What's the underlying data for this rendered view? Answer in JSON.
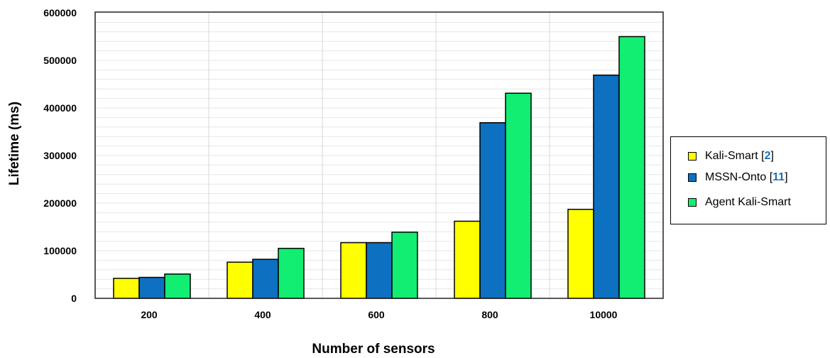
{
  "chart_data": {
    "type": "bar",
    "xlabel": "Number of sensors",
    "ylabel": "Lifetime (ms)",
    "categories": [
      "200",
      "400",
      "600",
      "800",
      "10000"
    ],
    "ylim": [
      0,
      600000
    ],
    "yticks": [
      "0",
      "100000",
      "200000",
      "300000",
      "400000",
      "500000",
      "600000"
    ],
    "grid": true,
    "legend_position": "right",
    "series": [
      {
        "name": "Kali-Smart [2]",
        "name_text": "Kali-Smart [",
        "name_ref": "2",
        "name_close": "]",
        "color": "#ffff00",
        "values": [
          42000,
          76000,
          117000,
          162000,
          187000
        ]
      },
      {
        "name": "MSSN-Onto [11]",
        "name_text": "MSSN-Onto [",
        "name_ref": "11",
        "name_close": "]",
        "color": "#0e70c0",
        "values": [
          44000,
          82000,
          117000,
          369000,
          469000
        ]
      },
      {
        "name": "Agent Kali-Smart",
        "name_text": "Agent Kali-Smart",
        "name_ref": "",
        "name_close": "",
        "color": "#11ee71",
        "values": [
          51000,
          105000,
          139000,
          431000,
          550000
        ]
      }
    ]
  }
}
